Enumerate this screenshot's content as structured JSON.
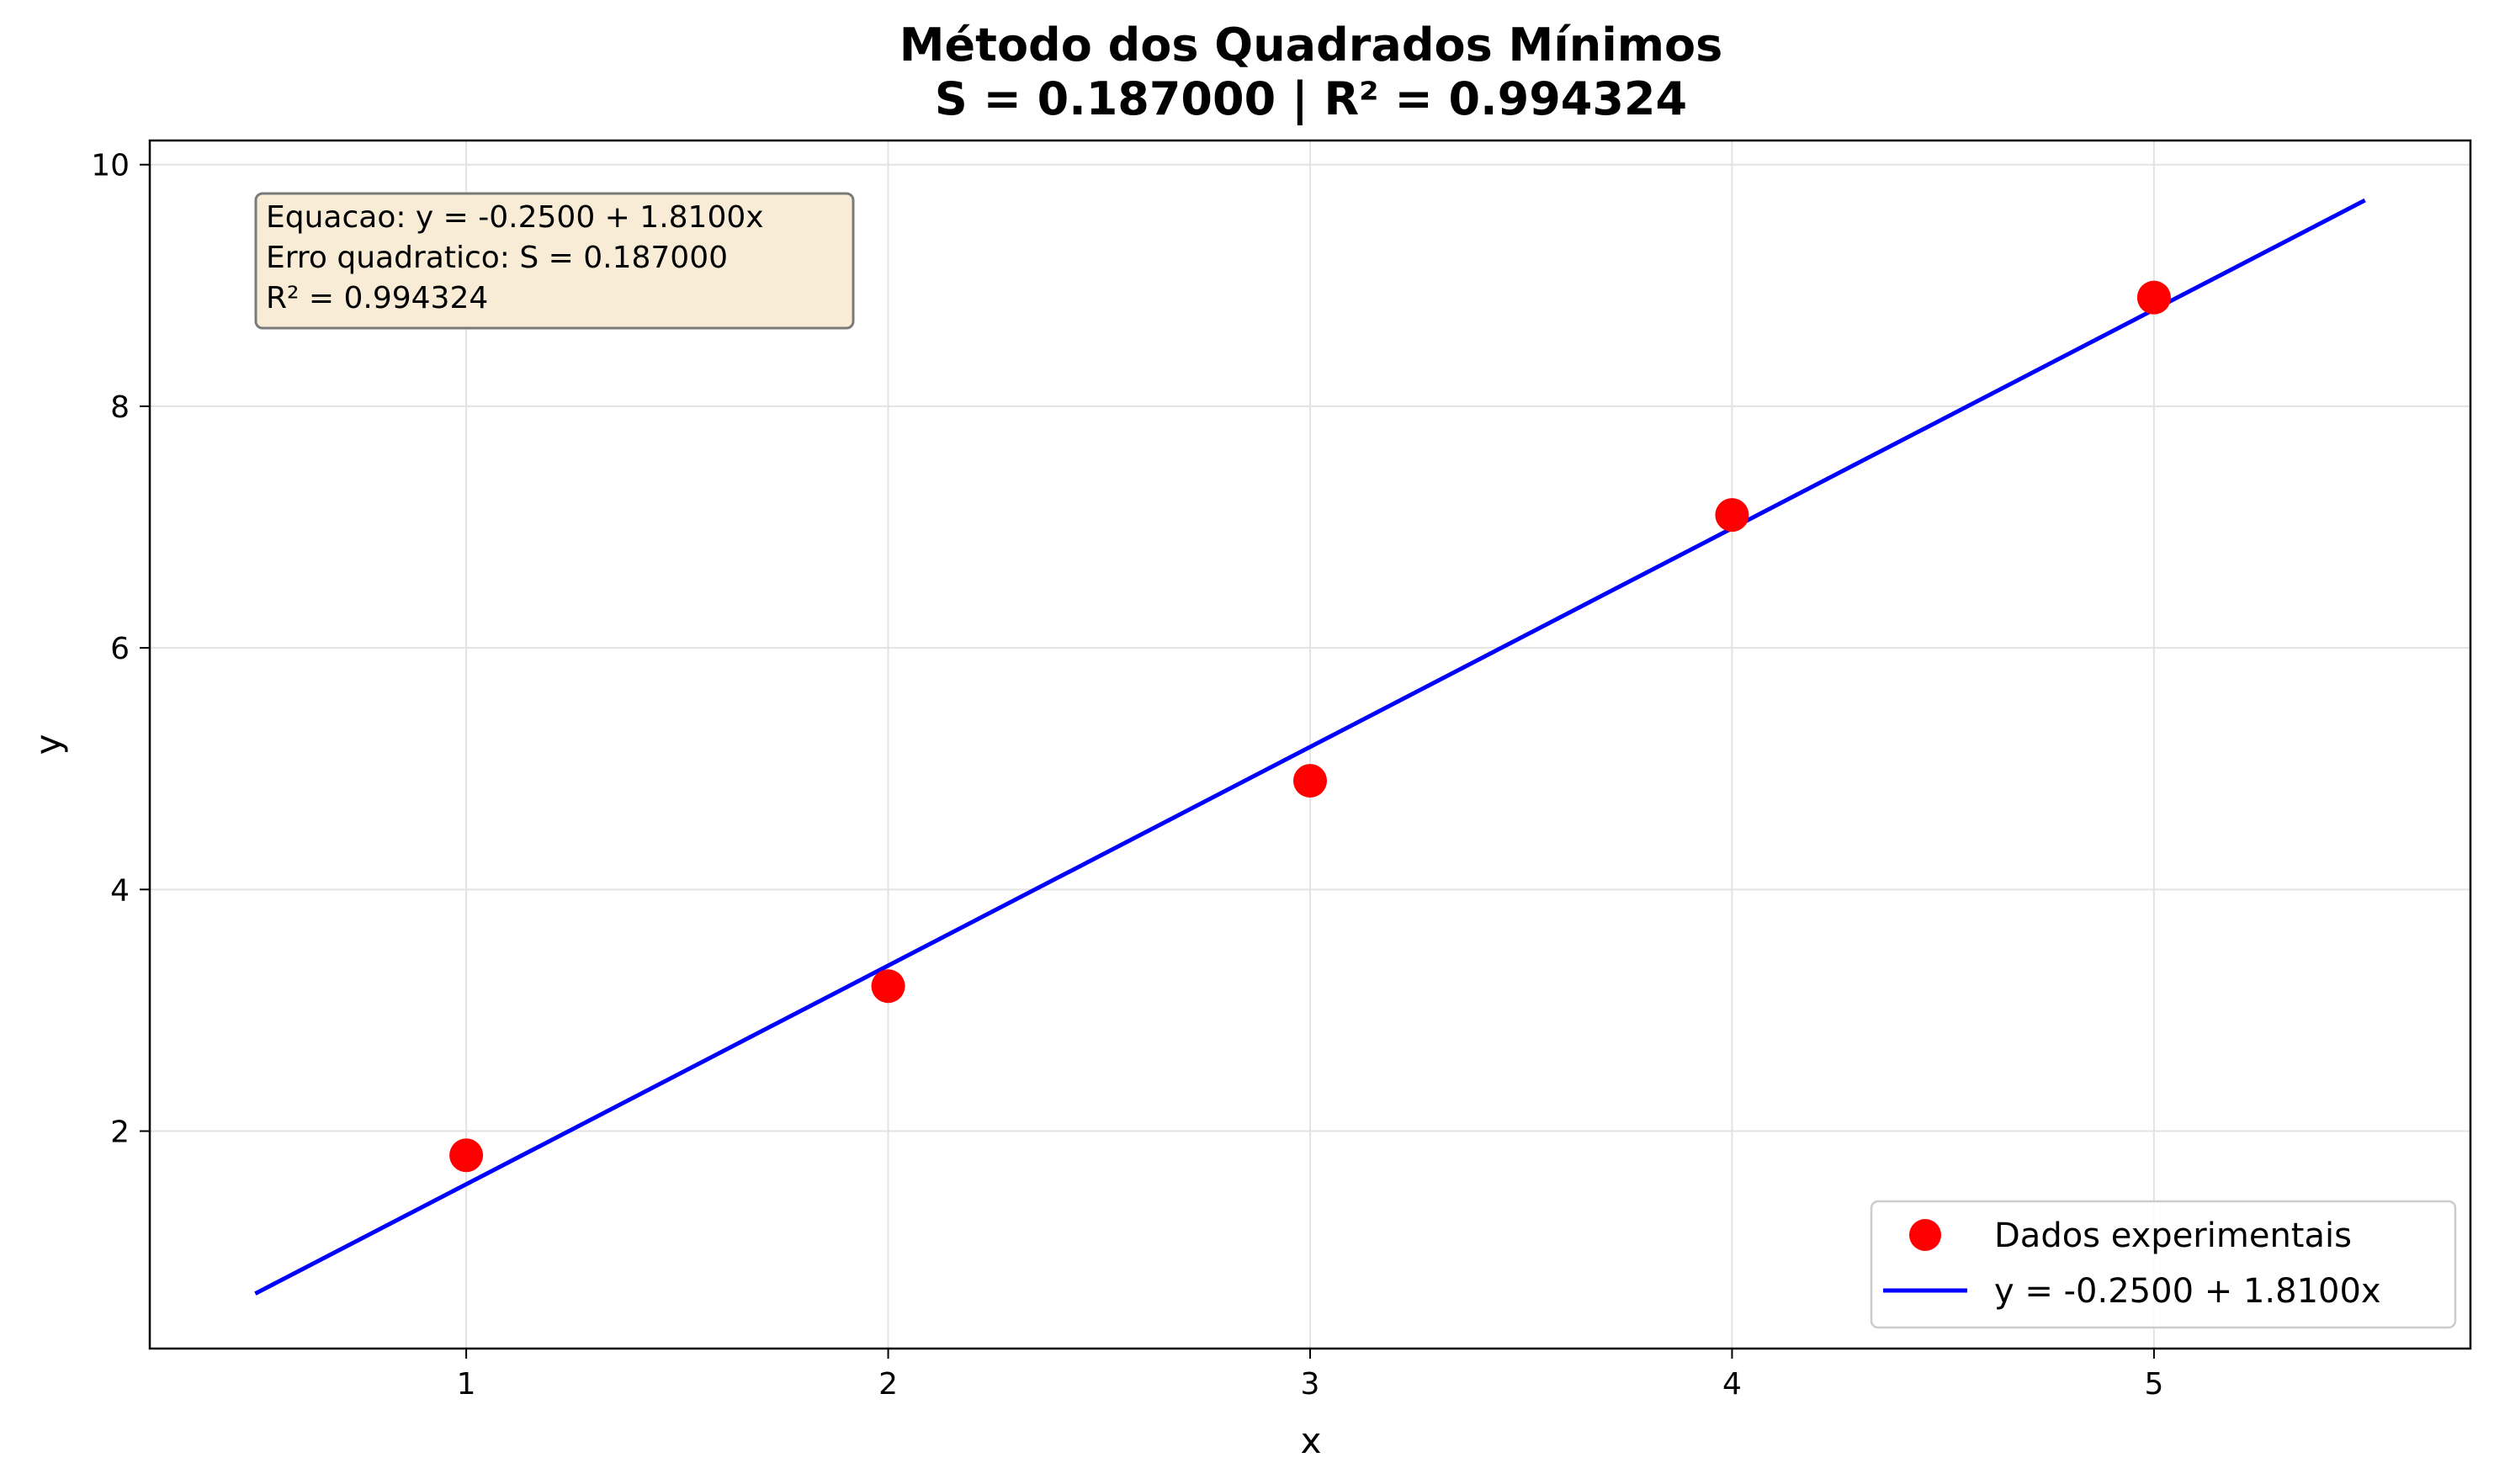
{
  "chart_data": {
    "type": "scatter",
    "title": "Método dos Quadrados Mínimos",
    "subtitle": "S = 0.187000 | R² = 0.994324",
    "xlabel": "x",
    "ylabel": "y",
    "xlim": [
      0.25,
      5.75
    ],
    "ylim": [
      0.2,
      10.2
    ],
    "grid": true,
    "legend_position": "lower-right",
    "x_ticks": [
      1,
      2,
      3,
      4,
      5
    ],
    "y_ticks": [
      2,
      4,
      6,
      8,
      10
    ],
    "series": [
      {
        "name": "Dados experimentais",
        "kind": "scatter",
        "color": "#ff0000",
        "x": [
          1,
          2,
          3,
          4,
          5
        ],
        "y": [
          1.8,
          3.2,
          4.9,
          7.1,
          8.9
        ]
      },
      {
        "name": "y = -0.2500 + 1.8100x",
        "kind": "line",
        "color": "#0000ff",
        "intercept": -0.25,
        "slope": 1.81,
        "x_range": [
          0.5,
          5.5
        ]
      }
    ],
    "annotation": {
      "lines": [
        "Equacao: y = -0.2500 + 1.8100x",
        "Erro quadratico: S = 0.187000",
        "R² = 0.994324"
      ],
      "box_color": "#f8ecd7",
      "border_color": "#7a7a7a"
    }
  }
}
